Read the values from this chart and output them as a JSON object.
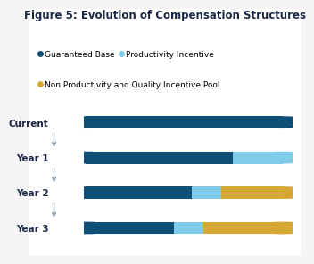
{
  "title": "Figure 5: Evolution of Compensation Structures",
  "rows": [
    "Current",
    "Year 1",
    "Year 2",
    "Year 3"
  ],
  "segments": [
    {
      "label": "Guaranteed Base",
      "color": "#0d4f76"
    },
    {
      "label": "Productivity Incentive",
      "color": "#7eccea"
    },
    {
      "label": "Non Productivity and Quality Incentive Pool",
      "color": "#d4a832"
    }
  ],
  "bar_data": [
    [
      1.0,
      0.0,
      0.0
    ],
    [
      0.75,
      0.25,
      0.0
    ],
    [
      0.54,
      0.15,
      0.31
    ],
    [
      0.45,
      0.15,
      0.4
    ]
  ],
  "bar_height": 0.35,
  "background": "#f5f5f5",
  "inner_bg": "#ffffff",
  "title_fontsize": 8.5,
  "label_fontsize": 7.5,
  "legend_fontsize": 6.5,
  "arrow_color": "#8899aa",
  "label_color": "#1a2744"
}
